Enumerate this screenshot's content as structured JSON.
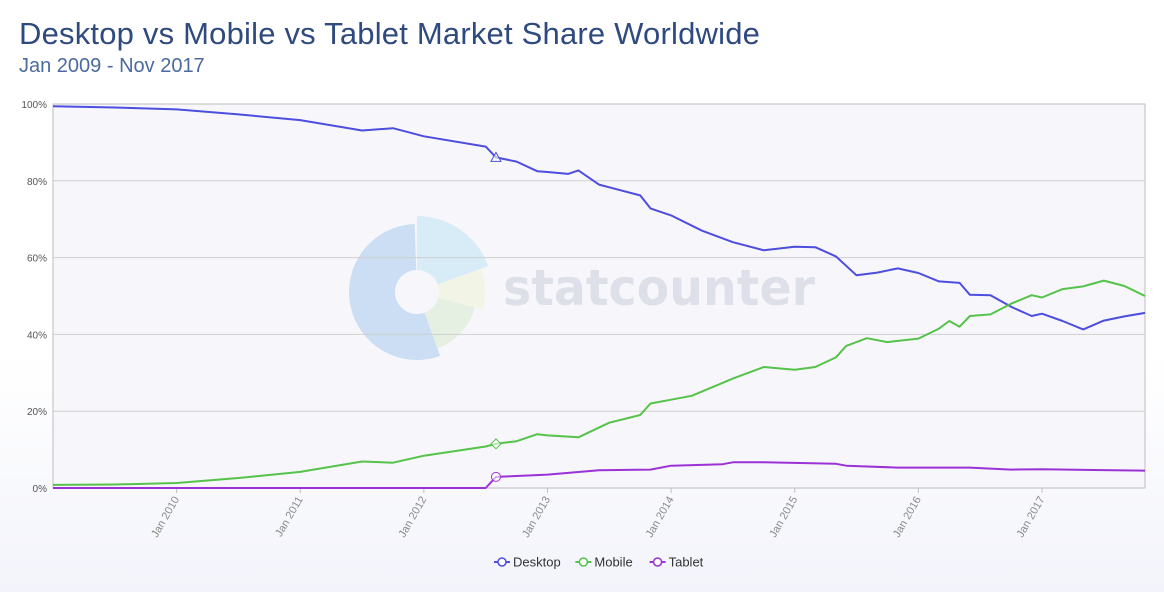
{
  "title": "Desktop vs Mobile vs Tablet Market Share Worldwide",
  "subtitle": "Jan 2009 - Nov 2017",
  "watermark": "statcounter",
  "colors": {
    "desktop": "#4d4de0",
    "mobile": "#55c24a",
    "tablet": "#9a32d6",
    "grid": "#cfcfcf",
    "plot_bg": "#f7f7fb"
  },
  "chart_data": {
    "type": "line",
    "title": "Desktop vs Mobile vs Tablet Market Share Worldwide",
    "subtitle": "Jan 2009 - Nov 2017",
    "x_range": [
      "2009-01",
      "2017-11"
    ],
    "ylim": [
      0,
      100
    ],
    "yticks": [
      "0%",
      "20%",
      "40%",
      "60%",
      "80%",
      "100%"
    ],
    "xticks": [
      "Jan 2010",
      "Jan 2011",
      "Jan 2012",
      "Jan 2013",
      "Jan 2014",
      "Jan 2015",
      "Jan 2016",
      "Jan 2017"
    ],
    "grid": true,
    "legend_position": "bottom-center",
    "series": [
      {
        "name": "Desktop",
        "color": "#4d4de0",
        "marker": "triangle",
        "points": [
          [
            "2009-01",
            99.4
          ],
          [
            "2009-07",
            99.1
          ],
          [
            "2010-01",
            98.6
          ],
          [
            "2010-07",
            97.3
          ],
          [
            "2011-01",
            95.8
          ],
          [
            "2011-07",
            93.1
          ],
          [
            "2011-10",
            93.7
          ],
          [
            "2012-01",
            91.6
          ],
          [
            "2012-07",
            88.9
          ],
          [
            "2012-08",
            86.1
          ],
          [
            "2012-10",
            85.0
          ],
          [
            "2012-12",
            82.5
          ],
          [
            "2013-01",
            82.3
          ],
          [
            "2013-03",
            81.8
          ],
          [
            "2013-04",
            82.7
          ],
          [
            "2013-06",
            79.0
          ],
          [
            "2013-07",
            78.3
          ],
          [
            "2013-10",
            76.2
          ],
          [
            "2013-11",
            72.8
          ],
          [
            "2014-01",
            71.0
          ],
          [
            "2014-04",
            67.0
          ],
          [
            "2014-07",
            64.0
          ],
          [
            "2014-10",
            61.9
          ],
          [
            "2015-01",
            62.8
          ],
          [
            "2015-03",
            62.7
          ],
          [
            "2015-05",
            60.3
          ],
          [
            "2015-07",
            55.4
          ],
          [
            "2015-09",
            56.1
          ],
          [
            "2015-11",
            57.2
          ],
          [
            "2016-01",
            56.0
          ],
          [
            "2016-03",
            53.8
          ],
          [
            "2016-05",
            53.4
          ],
          [
            "2016-06",
            50.3
          ],
          [
            "2016-08",
            50.2
          ],
          [
            "2016-10",
            47.2
          ],
          [
            "2016-12",
            44.8
          ],
          [
            "2017-01",
            45.4
          ],
          [
            "2017-03",
            43.5
          ],
          [
            "2017-05",
            41.3
          ],
          [
            "2017-07",
            43.6
          ],
          [
            "2017-09",
            44.7
          ],
          [
            "2017-11",
            45.6
          ]
        ]
      },
      {
        "name": "Mobile",
        "color": "#55c24a",
        "marker": "diamond",
        "points": [
          [
            "2009-01",
            0.8
          ],
          [
            "2009-07",
            0.9
          ],
          [
            "2010-01",
            1.3
          ],
          [
            "2010-07",
            2.6
          ],
          [
            "2011-01",
            4.2
          ],
          [
            "2011-07",
            6.9
          ],
          [
            "2011-10",
            6.6
          ],
          [
            "2012-01",
            8.4
          ],
          [
            "2012-07",
            10.8
          ],
          [
            "2012-08",
            11.5
          ],
          [
            "2012-10",
            12.2
          ],
          [
            "2012-12",
            14.0
          ],
          [
            "2013-01",
            13.7
          ],
          [
            "2013-04",
            13.2
          ],
          [
            "2013-07",
            17.0
          ],
          [
            "2013-10",
            19.0
          ],
          [
            "2013-11",
            22.0
          ],
          [
            "2014-01",
            23.0
          ],
          [
            "2014-03",
            24.0
          ],
          [
            "2014-07",
            28.5
          ],
          [
            "2014-10",
            31.5
          ],
          [
            "2015-01",
            30.8
          ],
          [
            "2015-03",
            31.5
          ],
          [
            "2015-05",
            34.0
          ],
          [
            "2015-06",
            37.0
          ],
          [
            "2015-08",
            39.0
          ],
          [
            "2015-10",
            38.0
          ],
          [
            "2016-01",
            38.9
          ],
          [
            "2016-03",
            41.5
          ],
          [
            "2016-04",
            43.5
          ],
          [
            "2016-05",
            42.0
          ],
          [
            "2016-06",
            44.8
          ],
          [
            "2016-08",
            45.2
          ],
          [
            "2016-10",
            48.0
          ],
          [
            "2016-12",
            50.2
          ],
          [
            "2017-01",
            49.6
          ],
          [
            "2017-03",
            51.8
          ],
          [
            "2017-05",
            52.5
          ],
          [
            "2017-07",
            54.0
          ],
          [
            "2017-09",
            52.6
          ],
          [
            "2017-11",
            50.0
          ]
        ]
      },
      {
        "name": "Tablet",
        "color": "#9a32d6",
        "marker": "circle",
        "points": [
          [
            "2009-01",
            0.0
          ],
          [
            "2012-07",
            0.0
          ],
          [
            "2012-08",
            2.9
          ],
          [
            "2013-01",
            3.5
          ],
          [
            "2013-06",
            4.6
          ],
          [
            "2013-11",
            4.8
          ],
          [
            "2014-01",
            5.8
          ],
          [
            "2014-06",
            6.2
          ],
          [
            "2014-07",
            6.7
          ],
          [
            "2014-10",
            6.7
          ],
          [
            "2015-05",
            6.3
          ],
          [
            "2015-06",
            5.8
          ],
          [
            "2015-11",
            5.3
          ],
          [
            "2016-06",
            5.3
          ],
          [
            "2016-10",
            4.8
          ],
          [
            "2017-01",
            4.9
          ],
          [
            "2017-06",
            4.7
          ],
          [
            "2017-11",
            4.5
          ]
        ]
      }
    ]
  }
}
